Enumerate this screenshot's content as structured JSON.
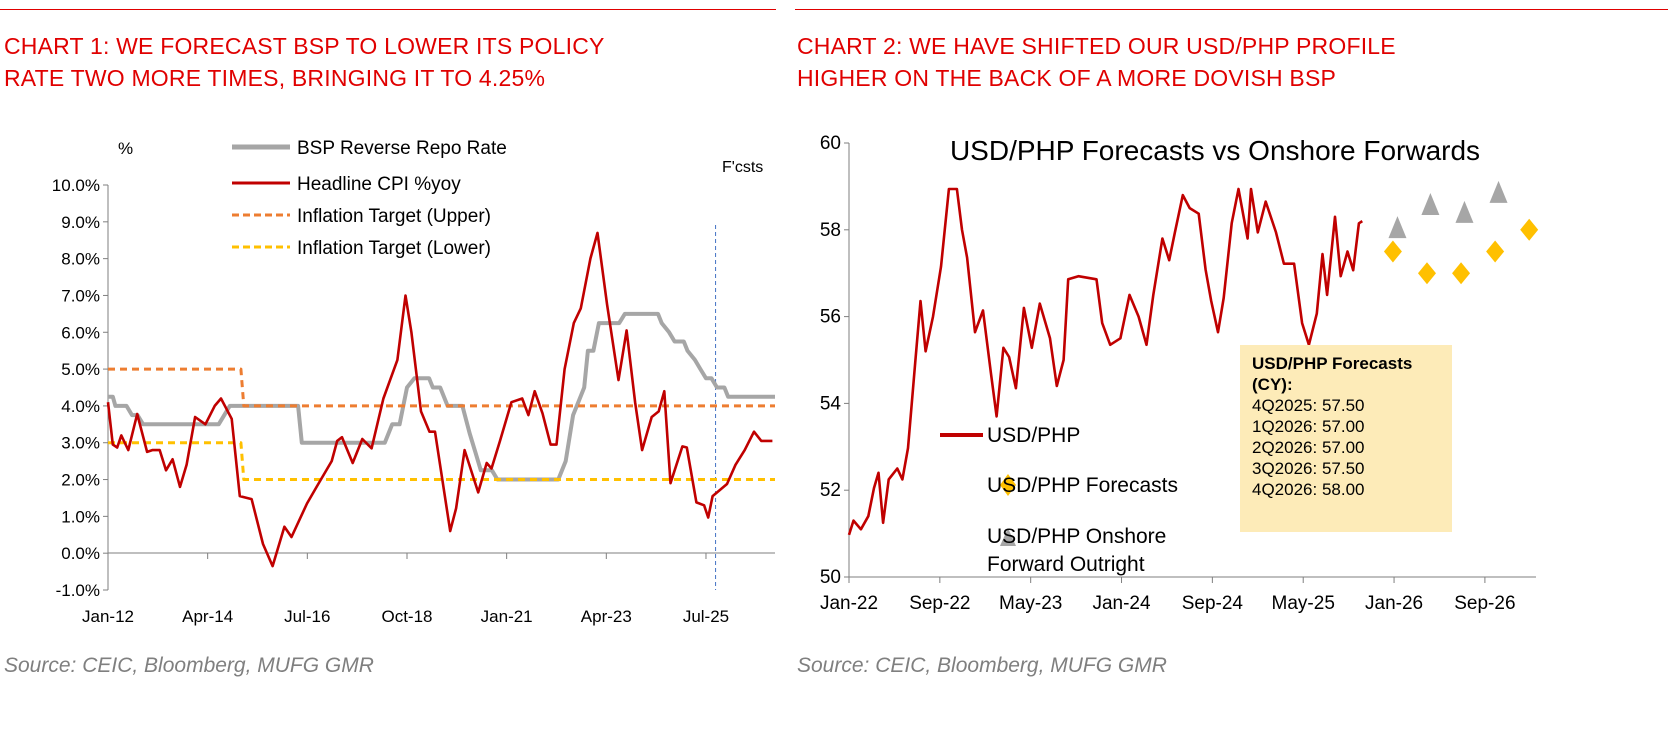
{
  "left": {
    "title_line1": "CHART 1: WE FORECAST BSP TO LOWER ITS POLICY",
    "title_line2": "RATE TWO MORE TIMES, BRINGING IT TO 4.25%",
    "source": "Source: CEIC, Bloomberg, MUFG GMR"
  },
  "right": {
    "title_line1": "CHART 2: WE HAVE SHIFTED OUR USD/PHP PROFILE",
    "title_line2": "HIGHER ON THE BACK OF A MORE DOVISH BSP",
    "source": "Source: CEIC, Bloomberg, MUFG GMR",
    "forecast_box": {
      "heading1": "USD/PHP Forecasts",
      "heading2": "(CY):",
      "lines": [
        "4Q2025: 57.50",
        "1Q2026: 57.00",
        "2Q2026: 57.00",
        "3Q2026: 57.50",
        "4Q2026: 58.00"
      ]
    }
  },
  "colors": {
    "red": "#c00000",
    "gray": "#a6a6a6",
    "orange": "#ed7d31",
    "yellow": "#ffc000",
    "title_red": "#e00000",
    "vline": "#4472c4"
  },
  "chart_data": [
    {
      "type": "line",
      "title": "",
      "ylabel": "%",
      "annotation": "F'csts",
      "forecast_start_month": 164.6,
      "x_unit": "months since Jan-12",
      "xlim": [
        0,
        180.7
      ],
      "ylim": [
        -1,
        10
      ],
      "yticks": [
        -1,
        0,
        1,
        2,
        3,
        4,
        5,
        6,
        7,
        8,
        9,
        10
      ],
      "ytick_labels": [
        "-1.0%",
        "0.0%",
        "1.0%",
        "2.0%",
        "3.0%",
        "4.0%",
        "5.0%",
        "6.0%",
        "7.0%",
        "8.0%",
        "9.0%",
        "10.0%"
      ],
      "xticks": [
        0,
        27,
        54,
        81,
        108,
        135,
        162
      ],
      "xtick_labels": [
        "Jan-12",
        "Apr-14",
        "Jul-16",
        "Oct-18",
        "Jan-21",
        "Apr-23",
        "Jul-25"
      ],
      "legend": "top-center",
      "series": [
        {
          "name": "BSP Reverse Repo Rate",
          "style": "solid-thick",
          "color": "gray",
          "points": [
            [
              0,
              4.25
            ],
            [
              1.3,
              4.25
            ],
            [
              2,
              4.0
            ],
            [
              5,
              4.0
            ],
            [
              6.5,
              3.75
            ],
            [
              8,
              3.75
            ],
            [
              9.5,
              3.5
            ],
            [
              30,
              3.5
            ],
            [
              31.5,
              3.75
            ],
            [
              33,
              4.0
            ],
            [
              51.5,
              4.0
            ],
            [
              52.5,
              3.0
            ],
            [
              75,
              3.0
            ],
            [
              77,
              3.5
            ],
            [
              79,
              3.5
            ],
            [
              81,
              4.5
            ],
            [
              83,
              4.75
            ],
            [
              87,
              4.75
            ],
            [
              88,
              4.5
            ],
            [
              90,
              4.5
            ],
            [
              92,
              4.0
            ],
            [
              96,
              4.0
            ],
            [
              98,
              3.25
            ],
            [
              99.5,
              2.75
            ],
            [
              101,
              2.25
            ],
            [
              104,
              2.25
            ],
            [
              105.5,
              2.0
            ],
            [
              122,
              2.0
            ],
            [
              124,
              2.5
            ],
            [
              126,
              3.75
            ],
            [
              128,
              4.25
            ],
            [
              129,
              4.5
            ],
            [
              130,
              5.5
            ],
            [
              131.5,
              5.5
            ],
            [
              133,
              6.25
            ],
            [
              138.5,
              6.25
            ],
            [
              140,
              6.5
            ],
            [
              149,
              6.5
            ],
            [
              150,
              6.25
            ],
            [
              152,
              6.0
            ],
            [
              153.5,
              5.75
            ],
            [
              156,
              5.75
            ],
            [
              157,
              5.5
            ],
            [
              159,
              5.25
            ],
            [
              160.5,
              5.0
            ],
            [
              162,
              4.75
            ],
            [
              163.5,
              4.75
            ],
            [
              165,
              4.5
            ],
            [
              167,
              4.5
            ],
            [
              168,
              4.25
            ],
            [
              180.7,
              4.25
            ]
          ]
        },
        {
          "name": "Headline CPI %yoy",
          "style": "solid",
          "color": "red",
          "points": [
            [
              0,
              4.1
            ],
            [
              1.3,
              2.95
            ],
            [
              2.5,
              2.87
            ],
            [
              3.6,
              3.2
            ],
            [
              5.5,
              2.8
            ],
            [
              7.9,
              3.78
            ],
            [
              10.6,
              2.75
            ],
            [
              12,
              2.8
            ],
            [
              14,
              2.8
            ],
            [
              15.7,
              2.25
            ],
            [
              17.5,
              2.55
            ],
            [
              19.5,
              1.8
            ],
            [
              21.3,
              2.4
            ],
            [
              23.6,
              3.7
            ],
            [
              26.4,
              3.5
            ],
            [
              28.9,
              4.0
            ],
            [
              30.6,
              4.2
            ],
            [
              33.5,
              3.65
            ],
            [
              35.7,
              1.55
            ],
            [
              38.9,
              1.47
            ],
            [
              42,
              0.25
            ],
            [
              44.6,
              -0.35
            ],
            [
              47.8,
              0.72
            ],
            [
              49.7,
              0.44
            ],
            [
              53.9,
              1.35
            ],
            [
              56.5,
              1.8
            ],
            [
              60.6,
              2.5
            ],
            [
              62.1,
              3.05
            ],
            [
              63.4,
              3.15
            ],
            [
              66.3,
              2.45
            ],
            [
              68.9,
              3.1
            ],
            [
              71.4,
              2.85
            ],
            [
              74.6,
              4.2
            ],
            [
              78.4,
              5.25
            ],
            [
              80.6,
              7.0
            ],
            [
              82.2,
              6.0
            ],
            [
              84.8,
              3.85
            ],
            [
              87.1,
              3.3
            ],
            [
              88.6,
              3.3
            ],
            [
              92.7,
              0.6
            ],
            [
              94.3,
              1.22
            ],
            [
              96.6,
              2.8
            ],
            [
              100.3,
              1.65
            ],
            [
              102.6,
              2.45
            ],
            [
              103.9,
              2.3
            ],
            [
              106.2,
              3.05
            ],
            [
              109.3,
              4.1
            ],
            [
              112.2,
              4.2
            ],
            [
              113.9,
              3.75
            ],
            [
              115.6,
              4.4
            ],
            [
              117.7,
              3.8
            ],
            [
              119.9,
              2.95
            ],
            [
              121.5,
              2.95
            ],
            [
              123.7,
              5.0
            ],
            [
              126.2,
              6.25
            ],
            [
              128.1,
              6.65
            ],
            [
              130.7,
              8.0
            ],
            [
              132.6,
              8.7
            ],
            [
              135.2,
              6.75
            ],
            [
              138.3,
              4.7
            ],
            [
              140.5,
              6.05
            ],
            [
              142.8,
              4.1
            ],
            [
              144.7,
              2.8
            ],
            [
              147.3,
              3.7
            ],
            [
              149.2,
              3.85
            ],
            [
              150.7,
              4.4
            ],
            [
              152.4,
              1.9
            ],
            [
              155.6,
              2.9
            ],
            [
              156.8,
              2.87
            ],
            [
              159.4,
              1.38
            ],
            [
              161.5,
              1.3
            ],
            [
              162.6,
              0.97
            ],
            [
              163.8,
              1.55
            ],
            [
              167.7,
              1.88
            ],
            [
              170,
              2.4
            ],
            [
              172.5,
              2.8
            ],
            [
              175,
              3.3
            ],
            [
              177,
              3.05
            ],
            [
              180,
              3.05
            ]
          ]
        },
        {
          "name": "Inflation Target (Upper)",
          "style": "dashed",
          "color": "orange",
          "points": [
            [
              0,
              5.0
            ],
            [
              36,
              5.0
            ],
            [
              36.8,
              4.0
            ],
            [
              180.7,
              4.0
            ]
          ]
        },
        {
          "name": "Inflation Target (Lower)",
          "style": "dashed",
          "color": "yellow",
          "points": [
            [
              0,
              3.0
            ],
            [
              36,
              3.0
            ],
            [
              36.8,
              2.0
            ],
            [
              180.7,
              2.0
            ]
          ]
        }
      ]
    },
    {
      "type": "line",
      "title": "USD/PHP Forecasts vs Onshore Forwards",
      "x_unit": "months since Jan-22",
      "xlim": [
        0,
        60.5
      ],
      "ylim": [
        50,
        60
      ],
      "yticks": [
        50,
        52,
        54,
        56,
        58,
        60
      ],
      "ytick_labels": [
        "50",
        "52",
        "54",
        "56",
        "58",
        "60"
      ],
      "xticks": [
        0,
        8,
        16,
        24,
        32,
        40,
        48,
        56
      ],
      "xtick_labels": [
        "Jan-22",
        "Sep-22",
        "May-23",
        "Jan-24",
        "Sep-24",
        "May-25",
        "Jan-26",
        "Sep-26"
      ],
      "legend": "bottom-left",
      "series": [
        {
          "name": "USD/PHP",
          "style": "line",
          "color": "red",
          "points": [
            [
              0,
              50.97
            ],
            [
              0.4,
              51.3
            ],
            [
              1.05,
              51.1
            ],
            [
              1.7,
              51.4
            ],
            [
              2.2,
              52.05
            ],
            [
              2.6,
              52.4
            ],
            [
              3.0,
              51.25
            ],
            [
              3.5,
              52.25
            ],
            [
              4.25,
              52.5
            ],
            [
              4.7,
              52.25
            ],
            [
              5.2,
              52.97
            ],
            [
              5.85,
              54.99
            ],
            [
              6.3,
              56.36
            ],
            [
              6.75,
              55.2
            ],
            [
              7.4,
              56.0
            ],
            [
              8.1,
              57.15
            ],
            [
              8.8,
              58.94
            ],
            [
              9.5,
              58.94
            ],
            [
              9.95,
              58.0
            ],
            [
              10.4,
              57.36
            ],
            [
              11.1,
              55.64
            ],
            [
              11.8,
              56.14
            ],
            [
              12.5,
              54.7
            ],
            [
              13.0,
              53.7
            ],
            [
              13.6,
              55.28
            ],
            [
              14.1,
              55.07
            ],
            [
              14.7,
              54.35
            ],
            [
              15.4,
              56.2
            ],
            [
              16.1,
              55.28
            ],
            [
              16.8,
              56.3
            ],
            [
              17.7,
              55.5
            ],
            [
              18.3,
              54.4
            ],
            [
              18.9,
              55.0
            ],
            [
              19.3,
              56.86
            ],
            [
              20.2,
              56.93
            ],
            [
              21.8,
              56.86
            ],
            [
              22.3,
              55.85
            ],
            [
              23.0,
              55.35
            ],
            [
              23.9,
              55.5
            ],
            [
              24.7,
              56.5
            ],
            [
              25.5,
              56.0
            ],
            [
              26.2,
              55.35
            ],
            [
              26.8,
              56.5
            ],
            [
              27.6,
              57.8
            ],
            [
              28.2,
              57.3
            ],
            [
              28.7,
              57.94
            ],
            [
              29.4,
              58.8
            ],
            [
              30.0,
              58.5
            ],
            [
              30.8,
              58.37
            ],
            [
              31.4,
              57.08
            ],
            [
              31.9,
              56.36
            ],
            [
              32.5,
              55.64
            ],
            [
              33.0,
              56.43
            ],
            [
              33.7,
              58.15
            ],
            [
              34.3,
              58.94
            ],
            [
              35.1,
              57.8
            ],
            [
              35.4,
              58.94
            ],
            [
              36.0,
              57.94
            ],
            [
              36.7,
              58.65
            ],
            [
              37.6,
              57.94
            ],
            [
              38.3,
              57.22
            ],
            [
              39.2,
              57.22
            ],
            [
              39.9,
              55.85
            ],
            [
              40.5,
              55.35
            ],
            [
              41.2,
              56.07
            ],
            [
              41.7,
              57.44
            ],
            [
              42.1,
              56.5
            ],
            [
              42.8,
              58.3
            ],
            [
              43.3,
              56.93
            ],
            [
              43.9,
              57.5
            ],
            [
              44.4,
              57.07
            ],
            [
              44.9,
              58.15
            ],
            [
              45.2,
              58.2
            ]
          ]
        },
        {
          "name": "USD/PHP Forecasts",
          "style": "diamond",
          "color": "yellow",
          "points": [
            [
              47.9,
              57.5
            ],
            [
              50.9,
              57.0
            ],
            [
              53.9,
              57.0
            ],
            [
              56.9,
              57.5
            ],
            [
              59.9,
              58.0
            ]
          ]
        },
        {
          "name": "USD/PHP Onshore Forward Outright",
          "style": "triangle",
          "color": "gray",
          "points": [
            [
              48.3,
              58.04
            ],
            [
              51.2,
              58.57
            ],
            [
              54.2,
              58.39
            ],
            [
              57.2,
              58.85
            ]
          ]
        }
      ]
    }
  ]
}
